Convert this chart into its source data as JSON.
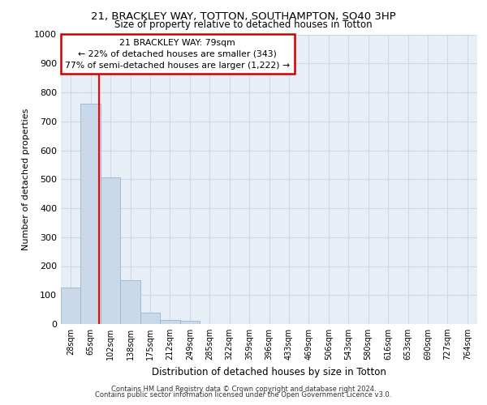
{
  "title_line1": "21, BRACKLEY WAY, TOTTON, SOUTHAMPTON, SO40 3HP",
  "title_line2": "Size of property relative to detached houses in Totton",
  "xlabel": "Distribution of detached houses by size in Totton",
  "ylabel": "Number of detached properties",
  "footer_line1": "Contains HM Land Registry data © Crown copyright and database right 2024.",
  "footer_line2": "Contains public sector information licensed under the Open Government Licence v3.0.",
  "bin_labels": [
    "28sqm",
    "65sqm",
    "102sqm",
    "138sqm",
    "175sqm",
    "212sqm",
    "249sqm",
    "285sqm",
    "322sqm",
    "359sqm",
    "396sqm",
    "433sqm",
    "469sqm",
    "506sqm",
    "543sqm",
    "580sqm",
    "616sqm",
    "653sqm",
    "690sqm",
    "727sqm",
    "764sqm"
  ],
  "bar_values": [
    125,
    760,
    505,
    150,
    38,
    15,
    10,
    0,
    0,
    0,
    0,
    0,
    0,
    0,
    0,
    0,
    0,
    0,
    0,
    0,
    0
  ],
  "bar_color": "#c9d9ea",
  "bar_edge_color": "#9ab4cc",
  "red_line_x": 1.41,
  "ylim": [
    0,
    1000
  ],
  "yticks": [
    0,
    100,
    200,
    300,
    400,
    500,
    600,
    700,
    800,
    900,
    1000
  ],
  "annotation_text_line1": "21 BRACKLEY WAY: 79sqm",
  "annotation_text_line2": "← 22% of detached houses are smaller (343)",
  "annotation_text_line3": "77% of semi-detached houses are larger (1,222) →",
  "annotation_box_color": "#ffffff",
  "annotation_box_edge": "#cc0000",
  "grid_color": "#cdd8e8",
  "bg_color": "#e8eef5"
}
